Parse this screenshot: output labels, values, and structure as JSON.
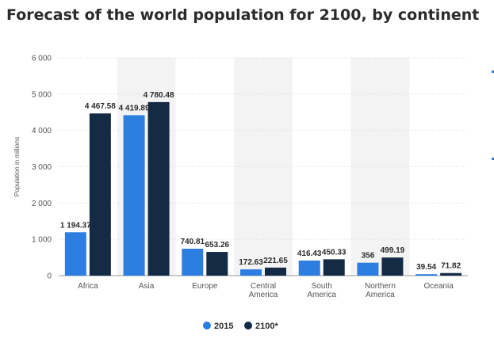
{
  "header": {
    "title": "Forecast of the world population for 2100, by continent"
  },
  "chart_data": {
    "type": "bar",
    "title": "Forecast of the world population for 2100, by continent",
    "xlabel": "",
    "ylabel": "Population in millions",
    "ylim": [
      0,
      6000
    ],
    "yticks": [
      0,
      1000,
      2000,
      3000,
      4000,
      5000,
      6000
    ],
    "ytick_labels": [
      "0",
      "1 000",
      "2 000",
      "3 000",
      "4 000",
      "5 000",
      "6 000"
    ],
    "categories": [
      [
        "Africa"
      ],
      [
        "Asia"
      ],
      [
        "Europe"
      ],
      [
        "Central",
        "America"
      ],
      [
        "South",
        "America"
      ],
      [
        "Northern",
        "America"
      ],
      [
        "Oceania"
      ]
    ],
    "series": [
      {
        "name": "2015",
        "color": "#2e7de1",
        "values": [
          1194.37,
          4419.89,
          740.81,
          172.63,
          416.43,
          356,
          39.54
        ],
        "labels": [
          "1 194.37",
          "4 419.89",
          "740.81",
          "172.63",
          "416.43",
          "356",
          "39.54"
        ]
      },
      {
        "name": "2100*",
        "color": "#152a44",
        "values": [
          4467.58,
          4780.48,
          653.26,
          221.65,
          450.33,
          499.19,
          71.82
        ],
        "labels": [
          "4 467.58",
          "4 780.48",
          "653.26",
          "221.65",
          "450.33",
          "499.19",
          "71.82"
        ]
      }
    ],
    "grid": true,
    "legend_position": "bottom-center",
    "background_bands": "alternating light grey bands behind every other category"
  }
}
